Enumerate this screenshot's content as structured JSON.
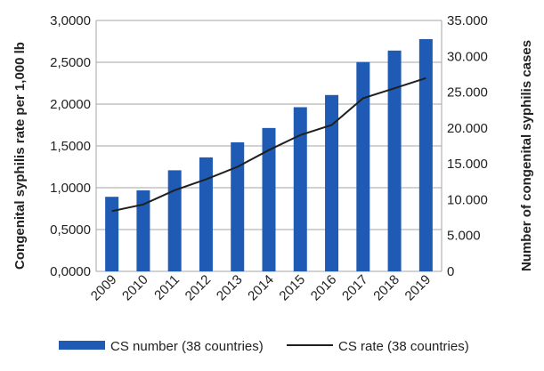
{
  "chart_data": {
    "type": "bar+line",
    "categories": [
      "2009",
      "2010",
      "2011",
      "2012",
      "2013",
      "2014",
      "2015",
      "2016",
      "2017",
      "2018",
      "2019"
    ],
    "series": [
      {
        "name": "CS number (38 countries)",
        "type": "bar",
        "axis": "right",
        "color": "#1f5bb4",
        "values": [
          10400,
          11300,
          14100,
          15900,
          18000,
          20000,
          22900,
          24600,
          29200,
          30800,
          32400
        ]
      },
      {
        "name": "CS rate (38 countries)",
        "type": "line",
        "axis": "left",
        "color": "#1f1f1f",
        "values": [
          0.72,
          0.8,
          0.97,
          1.1,
          1.25,
          1.45,
          1.63,
          1.75,
          2.07,
          2.19,
          2.31
        ]
      }
    ],
    "ylabel_left": "Congenital syphilis rate per 1,000 lb",
    "ylabel_right": "Number of congenital syphilis cases",
    "ylim_left": [
      0,
      3
    ],
    "ylim_right": [
      0,
      35000
    ],
    "yticks_left": [
      "0,0000",
      "0,5000",
      "1,0000",
      "1,5000",
      "2,0000",
      "2,5000",
      "3,0000"
    ],
    "yticks_right": [
      "0",
      "5.000",
      "10.000",
      "15.000",
      "20.000",
      "25.000",
      "30.000",
      "35.000"
    ],
    "grid": true,
    "legend_position": "bottom"
  }
}
